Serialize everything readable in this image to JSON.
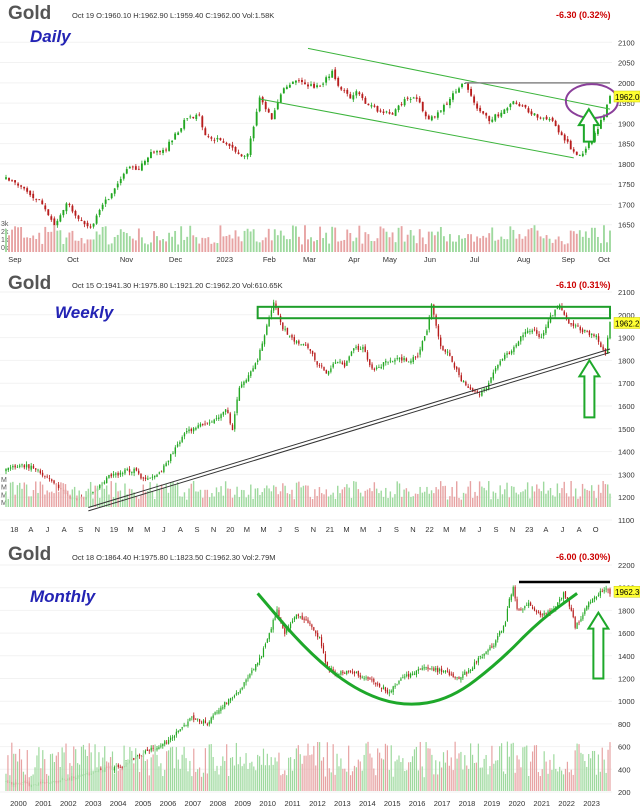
{
  "chart_data": [
    {
      "type": "candlestick",
      "title": "Gold",
      "date": "Oct 19",
      "ohlc": {
        "O": "1960.10",
        "H": "1962.90",
        "L": "1959.40",
        "C": "1962.00",
        "Vol": "1.58K"
      },
      "change": "-6.30 (0.32%)",
      "label": "Daily",
      "price_tag": "1962.00",
      "ylim": [
        1600,
        2150
      ],
      "yticks": [
        "2100",
        "2050",
        "2000",
        "1950",
        "1900",
        "1850",
        "1800",
        "1750",
        "1700",
        "1650"
      ],
      "x_ticks": [
        "Sep",
        "Oct",
        "Nov",
        "Dec",
        "2023",
        "Feb",
        "Mar",
        "Apr",
        "May",
        "Jun",
        "Jul",
        "Aug",
        "Sep",
        "Oct"
      ],
      "volume_ticks": [
        "3k",
        "2k",
        "1k",
        "0k"
      ],
      "anchors": [
        [
          0,
          1765
        ],
        [
          6,
          1740
        ],
        [
          12,
          1700
        ],
        [
          16,
          1650
        ],
        [
          20,
          1705
        ],
        [
          24,
          1660
        ],
        [
          28,
          1640
        ],
        [
          32,
          1700
        ],
        [
          36,
          1735
        ],
        [
          40,
          1790
        ],
        [
          44,
          1790
        ],
        [
          48,
          1825
        ],
        [
          52,
          1830
        ],
        [
          56,
          1870
        ],
        [
          60,
          1915
        ],
        [
          64,
          1920
        ],
        [
          66,
          1870
        ],
        [
          70,
          1860
        ],
        [
          74,
          1845
        ],
        [
          78,
          1815
        ],
        [
          80,
          1825
        ],
        [
          84,
          1960
        ],
        [
          88,
          1915
        ],
        [
          92,
          1990
        ],
        [
          96,
          2005
        ],
        [
          100,
          1995
        ],
        [
          104,
          1990
        ],
        [
          108,
          2030
        ],
        [
          110,
          1990
        ],
        [
          114,
          1965
        ],
        [
          116,
          1975
        ],
        [
          120,
          1945
        ],
        [
          124,
          1930
        ],
        [
          128,
          1925
        ],
        [
          132,
          1955
        ],
        [
          136,
          1960
        ],
        [
          140,
          1910
        ],
        [
          144,
          1930
        ],
        [
          148,
          1975
        ],
        [
          152,
          2000
        ],
        [
          156,
          1935
        ],
        [
          160,
          1910
        ],
        [
          164,
          1925
        ],
        [
          168,
          1950
        ],
        [
          172,
          1935
        ],
        [
          176,
          1915
        ],
        [
          180,
          1915
        ],
        [
          184,
          1870
        ],
        [
          188,
          1830
        ],
        [
          190,
          1820
        ],
        [
          194,
          1860
        ],
        [
          198,
          1920
        ],
        [
          200,
          1965
        ]
      ],
      "annotations": {
        "channel_upper": [
          [
            100,
            2085
          ],
          [
            200,
            1935
          ]
        ],
        "channel_lower": [
          [
            84,
            1960
          ],
          [
            188,
            1815
          ]
        ],
        "resistance": [
          [
            152,
            2000
          ],
          [
            200,
            2000
          ]
        ],
        "circle": {
          "x": 194,
          "y": 1955
        },
        "arrow": {
          "x": 193,
          "y_from": 1855,
          "y_to": 1935
        }
      }
    },
    {
      "type": "candlestick",
      "title": "Gold",
      "date": "Oct 15",
      "ohlc": {
        "O": "1941.30",
        "H": "1975.80",
        "L": "1921.20",
        "C": "1962.20",
        "Vol": "610.65K"
      },
      "change": "-6.10 (0.31%)",
      "label": "Weekly",
      "price_tag": "1962.20",
      "ylim": [
        1100,
        2100
      ],
      "yticks": [
        "2100",
        "2000",
        "1900",
        "1800",
        "1700",
        "1600",
        "1500",
        "1400",
        "1300",
        "1200",
        "1100"
      ],
      "x_ticks": [
        "18",
        "A",
        "J",
        "A",
        "S",
        "N",
        "19",
        "M",
        "M",
        "J",
        "A",
        "S",
        "N",
        "20",
        "M",
        "M",
        "J",
        "S",
        "N",
        "21",
        "M",
        "M",
        "J",
        "S",
        "N",
        "22",
        "M",
        "M",
        "J",
        "S",
        "N",
        "23",
        "A",
        "J",
        "A",
        "O"
      ],
      "volume_ticks": [
        "M",
        "M",
        "M",
        "M"
      ],
      "anchors": [
        [
          0,
          1320
        ],
        [
          6,
          1340
        ],
        [
          12,
          1330
        ],
        [
          18,
          1285
        ],
        [
          24,
          1230
        ],
        [
          28,
          1200
        ],
        [
          32,
          1185
        ],
        [
          36,
          1205
        ],
        [
          40,
          1240
        ],
        [
          44,
          1285
        ],
        [
          48,
          1300
        ],
        [
          52,
          1315
        ],
        [
          56,
          1320
        ],
        [
          60,
          1280
        ],
        [
          66,
          1290
        ],
        [
          70,
          1350
        ],
        [
          74,
          1420
        ],
        [
          78,
          1480
        ],
        [
          82,
          1500
        ],
        [
          86,
          1520
        ],
        [
          90,
          1530
        ],
        [
          94,
          1565
        ],
        [
          96,
          1590
        ],
        [
          99,
          1500
        ],
        [
          102,
          1680
        ],
        [
          106,
          1730
        ],
        [
          110,
          1800
        ],
        [
          114,
          1950
        ],
        [
          117,
          2060
        ],
        [
          120,
          1960
        ],
        [
          124,
          1900
        ],
        [
          128,
          1880
        ],
        [
          132,
          1860
        ],
        [
          136,
          1790
        ],
        [
          140,
          1740
        ],
        [
          144,
          1800
        ],
        [
          148,
          1780
        ],
        [
          152,
          1850
        ],
        [
          156,
          1860
        ],
        [
          160,
          1760
        ],
        [
          164,
          1780
        ],
        [
          168,
          1800
        ],
        [
          172,
          1810
        ],
        [
          176,
          1800
        ],
        [
          180,
          1825
        ],
        [
          184,
          1930
        ],
        [
          186,
          2040
        ],
        [
          190,
          1860
        ],
        [
          194,
          1820
        ],
        [
          198,
          1730
        ],
        [
          202,
          1680
        ],
        [
          206,
          1650
        ],
        [
          210,
          1680
        ],
        [
          214,
          1760
        ],
        [
          218,
          1820
        ],
        [
          222,
          1850
        ],
        [
          226,
          1920
        ],
        [
          230,
          1940
        ],
        [
          234,
          1900
        ],
        [
          238,
          1990
        ],
        [
          242,
          2050
        ],
        [
          246,
          1960
        ],
        [
          250,
          1940
        ],
        [
          254,
          1920
        ],
        [
          258,
          1900
        ],
        [
          262,
          1820
        ],
        [
          264,
          1962
        ]
      ],
      "annotations": {
        "resistance_box": {
          "x_from": 110,
          "x_to": 264,
          "y_from": 1985,
          "y_to": 2035
        },
        "trend_lines": [
          [
            [
              36,
              1155
            ],
            [
              264,
              1850
            ]
          ],
          [
            [
              36,
              1140
            ],
            [
              264,
              1835
            ]
          ]
        ],
        "arrow": {
          "x": 255,
          "y_from": 1550,
          "y_to": 1800
        }
      }
    },
    {
      "type": "candlestick",
      "title": "Gold",
      "date": "Oct 18",
      "ohlc": {
        "O": "1864.40",
        "H": "1975.80",
        "L": "1823.50",
        "C": "1962.30",
        "Vol": "2.79M"
      },
      "change": "-6.00 (0.30%)",
      "label": "Monthly",
      "price_tag": "1962.30",
      "ylim": [
        200,
        2200
      ],
      "yticks": [
        "2200",
        "2000",
        "1800",
        "1600",
        "1400",
        "1200",
        "1000",
        "800",
        "600",
        "400",
        "200"
      ],
      "x_ticks": [
        "2000",
        "2001",
        "2002",
        "2003",
        "2004",
        "2005",
        "2006",
        "2007",
        "2008",
        "2009",
        "2010",
        "2011",
        "2012",
        "2013",
        "2014",
        "2015",
        "2016",
        "2017",
        "2018",
        "2019",
        "2020",
        "2021",
        "2022",
        "2023"
      ],
      "volume_ticks": [],
      "anchors": [
        [
          0,
          285
        ],
        [
          12,
          270
        ],
        [
          24,
          290
        ],
        [
          36,
          330
        ],
        [
          48,
          400
        ],
        [
          60,
          430
        ],
        [
          72,
          550
        ],
        [
          84,
          650
        ],
        [
          96,
          850
        ],
        [
          104,
          800
        ],
        [
          108,
          900
        ],
        [
          120,
          1080
        ],
        [
          132,
          1400
        ],
        [
          138,
          1700
        ],
        [
          140,
          1800
        ],
        [
          144,
          1600
        ],
        [
          150,
          1750
        ],
        [
          156,
          1700
        ],
        [
          162,
          1550
        ],
        [
          166,
          1300
        ],
        [
          170,
          1250
        ],
        [
          180,
          1250
        ],
        [
          192,
          1150
        ],
        [
          198,
          1080
        ],
        [
          204,
          1200
        ],
        [
          216,
          1300
        ],
        [
          228,
          1250
        ],
        [
          234,
          1200
        ],
        [
          240,
          1290
        ],
        [
          246,
          1400
        ],
        [
          252,
          1500
        ],
        [
          258,
          1700
        ],
        [
          260,
          1900
        ],
        [
          262,
          2000
        ],
        [
          264,
          1800
        ],
        [
          270,
          1850
        ],
        [
          276,
          1750
        ],
        [
          282,
          1800
        ],
        [
          288,
          1950
        ],
        [
          292,
          1800
        ],
        [
          294,
          1650
        ],
        [
          296,
          1700
        ],
        [
          300,
          1850
        ],
        [
          306,
          1950
        ],
        [
          310,
          2000
        ],
        [
          312,
          1960
        ]
      ],
      "annotations": {
        "resistance": [
          [
            265,
            2050
          ],
          [
            312,
            2050
          ]
        ],
        "cup": [
          [
            130,
            1950
          ],
          [
            155,
            1450
          ],
          [
            180,
            1100
          ],
          [
            205,
            950
          ],
          [
            230,
            1020
          ],
          [
            255,
            1350
          ],
          [
            275,
            1700
          ],
          [
            295,
            1950
          ]
        ],
        "arrow": {
          "x": 306,
          "y_from": 1200,
          "y_to": 1780
        }
      }
    }
  ]
}
